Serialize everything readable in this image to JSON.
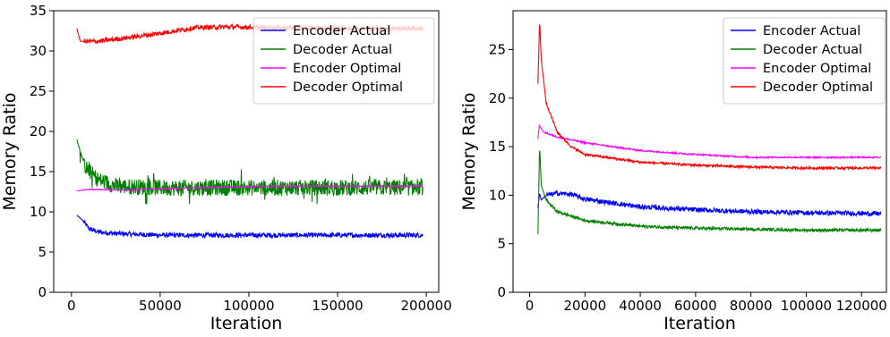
{
  "chart_data": [
    {
      "type": "line",
      "xlabel": "Iteration",
      "ylabel": "Memory Ratio",
      "xlim": [
        -10000,
        207000
      ],
      "ylim": [
        0,
        35
      ],
      "xticks": [
        0,
        50000,
        100000,
        150000,
        200000
      ],
      "xtick_labels": [
        "0",
        "50000",
        "100000",
        "150000",
        "200000"
      ],
      "yticks": [
        0,
        5,
        10,
        15,
        20,
        25,
        30,
        35
      ],
      "ytick_labels": [
        "0",
        "5",
        "10",
        "15",
        "20",
        "25",
        "30",
        "35"
      ],
      "grid": false,
      "legend_position": "top-right",
      "series": [
        {
          "name": "Encoder Actual",
          "color": "#0000ff",
          "noise": 0.3,
          "points": [
            [
              3000,
              9.6
            ],
            [
              6000,
              9.0
            ],
            [
              10000,
              7.9
            ],
            [
              15000,
              7.5
            ],
            [
              25000,
              7.3
            ],
            [
              50000,
              7.1
            ],
            [
              100000,
              7.1
            ],
            [
              150000,
              7.1
            ],
            [
              198000,
              7.1
            ]
          ]
        },
        {
          "name": "Decoder Actual",
          "color": "#008000",
          "noise": 1.0,
          "points": [
            [
              3000,
              19.0
            ],
            [
              5000,
              17.5
            ],
            [
              8000,
              15.5
            ],
            [
              15000,
              14.0
            ],
            [
              25000,
              13.2
            ],
            [
              50000,
              13.0
            ],
            [
              100000,
              13.0
            ],
            [
              150000,
              13.0
            ],
            [
              198000,
              13.0
            ]
          ]
        },
        {
          "name": "Encoder Optimal",
          "color": "#ff00ff",
          "noise": 0.05,
          "points": [
            [
              3000,
              12.6
            ],
            [
              10000,
              12.8
            ],
            [
              30000,
              12.7
            ],
            [
              70000,
              13.0
            ],
            [
              110000,
              13.2
            ],
            [
              150000,
              13.2
            ],
            [
              198000,
              13.2
            ]
          ]
        },
        {
          "name": "Decoder Optimal",
          "color": "#ff0000",
          "noise": 0.3,
          "points": [
            [
              3000,
              32.8
            ],
            [
              5000,
              31.2
            ],
            [
              15000,
              31.2
            ],
            [
              30000,
              31.6
            ],
            [
              50000,
              32.2
            ],
            [
              70000,
              32.9
            ],
            [
              90000,
              33.0
            ],
            [
              110000,
              32.9
            ],
            [
              150000,
              32.8
            ],
            [
              198000,
              32.8
            ]
          ]
        }
      ]
    },
    {
      "type": "line",
      "xlabel": "Iteration",
      "ylabel": "Memory Ratio",
      "xlim": [
        -6000,
        129000
      ],
      "ylim": [
        0,
        29
      ],
      "xticks": [
        0,
        20000,
        40000,
        60000,
        80000,
        100000,
        120000
      ],
      "xtick_labels": [
        "0",
        "20000",
        "40000",
        "60000",
        "80000",
        "100000",
        "120000"
      ],
      "yticks": [
        0,
        5,
        10,
        15,
        20,
        25
      ],
      "ytick_labels": [
        "0",
        "5",
        "10",
        "15",
        "20",
        "25"
      ],
      "grid": false,
      "legend_position": "top-right",
      "series": [
        {
          "name": "Encoder Actual",
          "color": "#0000ff",
          "noise": 0.25,
          "points": [
            [
              3000,
              8.7
            ],
            [
              3600,
              10.2
            ],
            [
              4200,
              9.5
            ],
            [
              6000,
              10.0
            ],
            [
              10000,
              10.2
            ],
            [
              15000,
              10.1
            ],
            [
              20000,
              9.6
            ],
            [
              40000,
              8.8
            ],
            [
              60000,
              8.5
            ],
            [
              80000,
              8.3
            ],
            [
              100000,
              8.2
            ],
            [
              127000,
              8.1
            ]
          ]
        },
        {
          "name": "Decoder Actual",
          "color": "#008000",
          "noise": 0.15,
          "points": [
            [
              3000,
              6.0
            ],
            [
              3600,
              15.2
            ],
            [
              4200,
              11.0
            ],
            [
              6000,
              9.5
            ],
            [
              10000,
              8.3
            ],
            [
              20000,
              7.4
            ],
            [
              40000,
              6.8
            ],
            [
              60000,
              6.6
            ],
            [
              80000,
              6.5
            ],
            [
              100000,
              6.4
            ],
            [
              127000,
              6.4
            ]
          ]
        },
        {
          "name": "Encoder Optimal",
          "color": "#ff00ff",
          "noise": 0.08,
          "points": [
            [
              3000,
              15.8
            ],
            [
              3500,
              17.2
            ],
            [
              5000,
              16.5
            ],
            [
              10000,
              16.0
            ],
            [
              20000,
              15.4
            ],
            [
              40000,
              14.6
            ],
            [
              60000,
              14.2
            ],
            [
              80000,
              13.9
            ],
            [
              100000,
              13.9
            ],
            [
              127000,
              13.9
            ]
          ]
        },
        {
          "name": "Decoder Optimal",
          "color": "#ff0000",
          "noise": 0.12,
          "points": [
            [
              3000,
              21.5
            ],
            [
              3600,
              28.0
            ],
            [
              4200,
              24.0
            ],
            [
              6000,
              19.5
            ],
            [
              10000,
              16.5
            ],
            [
              15000,
              15.0
            ],
            [
              20000,
              14.2
            ],
            [
              40000,
              13.4
            ],
            [
              60000,
              13.1
            ],
            [
              80000,
              12.9
            ],
            [
              100000,
              12.8
            ],
            [
              127000,
              12.8
            ]
          ]
        }
      ]
    }
  ]
}
